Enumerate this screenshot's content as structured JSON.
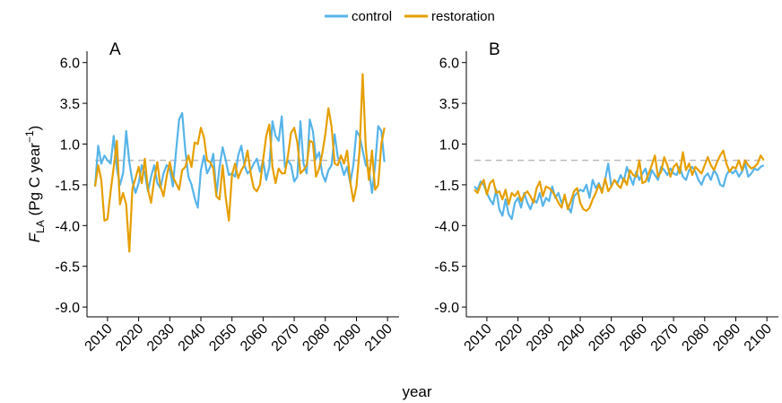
{
  "chart_data": [
    {
      "type": "line",
      "panel_label": "A",
      "xlabel": "year",
      "ylabel_parts": [
        "F",
        "LA",
        " (Pg C year",
        "−1",
        ")"
      ],
      "xlim": [
        2003.4,
        2103.7
      ],
      "ylim": [
        -9.6,
        6.7
      ],
      "xticks": [
        2010,
        2020,
        2030,
        2040,
        2050,
        2060,
        2070,
        2080,
        2090,
        2100
      ],
      "yticks": [
        {
          "value": 6,
          "label": "6.0"
        },
        3.5,
        {
          "value": 1,
          "label": "1.0"
        },
        -1.5,
        {
          "value": -4,
          "label": "-4.0"
        },
        -6.5,
        {
          "value": -9,
          "label": "-9.0"
        }
      ],
      "hline": 0,
      "hline_color": "#bbbbbb",
      "x": [
        2006,
        2007,
        2008,
        2009,
        2010,
        2011,
        2012,
        2013,
        2014,
        2015,
        2016,
        2017,
        2018,
        2019,
        2020,
        2021,
        2022,
        2023,
        2024,
        2025,
        2026,
        2027,
        2028,
        2029,
        2030,
        2031,
        2032,
        2033,
        2034,
        2035,
        2036,
        2037,
        2038,
        2039,
        2040,
        2041,
        2042,
        2043,
        2044,
        2045,
        2046,
        2047,
        2048,
        2049,
        2050,
        2051,
        2052,
        2053,
        2054,
        2055,
        2056,
        2057,
        2058,
        2059,
        2060,
        2061,
        2062,
        2063,
        2064,
        2065,
        2066,
        2067,
        2068,
        2069,
        2070,
        2071,
        2072,
        2073,
        2074,
        2075,
        2076,
        2077,
        2078,
        2079,
        2080,
        2081,
        2082,
        2083,
        2084,
        2085,
        2086,
        2087,
        2088,
        2089,
        2090,
        2091,
        2092,
        2093,
        2094,
        2095,
        2096,
        2097,
        2098,
        2099
      ],
      "series": [
        {
          "name": "control",
          "color": "#56b4e9",
          "values": [
            -1.6,
            0.9,
            -0.2,
            0.3,
            0.0,
            -0.2,
            1.5,
            -0.5,
            -1.5,
            -0.8,
            1.8,
            -0.1,
            -1.3,
            -2.0,
            -1.4,
            -0.3,
            -0.8,
            -1.9,
            -1.0,
            -0.3,
            -1.4,
            -1.7,
            -0.8,
            -0.3,
            -0.5,
            -1.6,
            0.5,
            2.5,
            2.9,
            0.6,
            -1.0,
            -1.5,
            -2.3,
            -2.9,
            -0.6,
            0.3,
            -0.8,
            -0.4,
            0.4,
            -2.1,
            -0.4,
            0.8,
            0.0,
            -0.9,
            -0.8,
            -1.0,
            0.3,
            0.9,
            -0.3,
            -0.8,
            -0.6,
            -0.2,
            0.1,
            -0.7,
            0.0,
            -1.2,
            -0.4,
            2.4,
            1.5,
            1.2,
            2.7,
            -0.4,
            0.0,
            -0.3,
            -1.3,
            -1.0,
            2.4,
            -0.2,
            -0.8,
            2.5,
            1.8,
            0.1,
            0.5,
            -0.8,
            -1.3,
            -0.6,
            -0.3,
            1.6,
            0.2,
            -0.2,
            -0.9,
            -0.4,
            -1.4,
            -0.3,
            1.8,
            1.5,
            0.6,
            -0.3,
            -0.5,
            -2.0,
            -0.3,
            2.1,
            1.8,
            -0.1
          ]
        },
        {
          "name": "restoration",
          "color": "#e69f00",
          "values": [
            -1.6,
            -0.3,
            -1.2,
            -3.7,
            -3.6,
            -1.9,
            -0.4,
            1.2,
            -2.7,
            -2.0,
            -2.7,
            -5.6,
            -1.7,
            -1.1,
            -0.4,
            -1.4,
            0.1,
            -1.8,
            -2.6,
            -1.2,
            -0.1,
            -1.6,
            -2.2,
            -1.0,
            -0.1,
            -1.0,
            -1.4,
            -1.8,
            -0.6,
            -0.4,
            0.3,
            -0.4,
            1.1,
            1.0,
            2.0,
            1.4,
            0.0,
            -0.1,
            -0.5,
            -2.2,
            -2.4,
            -0.3,
            -2.3,
            -3.7,
            -0.9,
            -0.2,
            -1.1,
            -0.6,
            -0.3,
            0.6,
            -0.8,
            -1.7,
            -1.9,
            -1.5,
            0.0,
            1.5,
            2.2,
            -0.4,
            -1.4,
            -0.5,
            -0.8,
            -0.8,
            0.3,
            1.7,
            2.0,
            1.1,
            -0.8,
            -0.6,
            -0.3,
            1.2,
            1.1,
            -1.0,
            -0.5,
            0.4,
            1.6,
            3.2,
            2.1,
            -0.2,
            -0.3,
            0.3,
            -0.2,
            0.6,
            -1.3,
            -2.5,
            -1.6,
            0.6,
            5.3,
            0.8,
            -1.2,
            0.6,
            -1.8,
            -1.5,
            1.0,
            2.0
          ]
        }
      ]
    },
    {
      "type": "line",
      "panel_label": "B",
      "xlim": [
        2003.4,
        2103.7
      ],
      "ylim": [
        -9.6,
        6.7
      ],
      "xticks": [
        2010,
        2020,
        2030,
        2040,
        2050,
        2060,
        2070,
        2080,
        2090,
        2100
      ],
      "yticks": [
        {
          "value": 6,
          "label": "6.0"
        },
        3.5,
        {
          "value": 1,
          "label": "1.0"
        },
        -1.5,
        {
          "value": -4,
          "label": "-4.0"
        },
        -6.5,
        {
          "value": -9,
          "label": "-9.0"
        }
      ],
      "hline": 0,
      "hline_color": "#bbbbbb",
      "x": [
        2006,
        2007,
        2008,
        2009,
        2010,
        2011,
        2012,
        2013,
        2014,
        2015,
        2016,
        2017,
        2018,
        2019,
        2020,
        2021,
        2022,
        2023,
        2024,
        2025,
        2026,
        2027,
        2028,
        2029,
        2030,
        2031,
        2032,
        2033,
        2034,
        2035,
        2036,
        2037,
        2038,
        2039,
        2040,
        2041,
        2042,
        2043,
        2044,
        2045,
        2046,
        2047,
        2048,
        2049,
        2050,
        2051,
        2052,
        2053,
        2054,
        2055,
        2056,
        2057,
        2058,
        2059,
        2060,
        2061,
        2062,
        2063,
        2064,
        2065,
        2066,
        2067,
        2068,
        2069,
        2070,
        2071,
        2072,
        2073,
        2074,
        2075,
        2076,
        2077,
        2078,
        2079,
        2080,
        2081,
        2082,
        2083,
        2084,
        2085,
        2086,
        2087,
        2088,
        2089,
        2090,
        2091,
        2092,
        2093,
        2094,
        2095,
        2096,
        2097,
        2098,
        2099
      ],
      "series": [
        {
          "color": "#56b4e9",
          "values": [
            -1.6,
            -1.8,
            -1.3,
            -1.5,
            -2.0,
            -2.4,
            -2.7,
            -1.8,
            -3.0,
            -3.4,
            -2.4,
            -3.3,
            -3.6,
            -2.6,
            -2.3,
            -2.9,
            -2.0,
            -2.6,
            -3.0,
            -2.4,
            -2.6,
            -2.0,
            -2.8,
            -2.3,
            -2.5,
            -1.6,
            -2.3,
            -2.0,
            -2.6,
            -2.3,
            -2.8,
            -3.2,
            -2.2,
            -2.0,
            -1.8,
            -1.9,
            -1.5,
            -2.3,
            -1.2,
            -1.7,
            -1.4,
            -1.9,
            -1.2,
            -0.2,
            -1.6,
            -1.2,
            -1.4,
            -0.9,
            -1.3,
            -0.4,
            -1.0,
            -1.5,
            -0.7,
            -1.2,
            -0.8,
            -0.5,
            -1.3,
            -0.6,
            -0.9,
            -1.2,
            -0.4,
            -0.6,
            -0.9,
            -0.5,
            -0.8,
            -0.9,
            -0.4,
            -1.0,
            -1.2,
            -0.6,
            -0.4,
            -0.7,
            -1.2,
            -1.5,
            -1.0,
            -0.8,
            -1.2,
            -0.6,
            -0.9,
            -1.5,
            -1.6,
            -0.9,
            -0.6,
            -0.8,
            -0.6,
            -1.0,
            -0.7,
            -0.2,
            -1.0,
            -0.8,
            -0.5,
            -0.6,
            -0.4,
            -0.3
          ]
        },
        {
          "color": "#e69f00",
          "values": [
            -1.8,
            -2.0,
            -1.5,
            -1.2,
            -2.1,
            -1.4,
            -1.2,
            -2.0,
            -1.9,
            -2.4,
            -1.8,
            -2.7,
            -2.0,
            -2.2,
            -1.9,
            -2.5,
            -2.1,
            -1.9,
            -2.2,
            -2.6,
            -1.7,
            -1.3,
            -2.2,
            -1.6,
            -1.7,
            -1.9,
            -2.2,
            -2.6,
            -2.9,
            -2.1,
            -3.0,
            -2.5,
            -1.9,
            -1.7,
            -2.6,
            -3.0,
            -3.1,
            -2.9,
            -2.4,
            -2.0,
            -1.5,
            -2.0,
            -1.1,
            -1.9,
            -1.6,
            -1.2,
            -1.5,
            -1.7,
            -1.1,
            -1.5,
            -0.6,
            -0.9,
            -1.0,
            0.0,
            -1.4,
            -1.3,
            -0.8,
            -0.3,
            0.3,
            -1.0,
            -0.7,
            0.2,
            -0.3,
            -1.0,
            -0.4,
            -0.2,
            -0.8,
            0.5,
            -0.6,
            -0.2,
            -0.9,
            -0.4,
            -0.6,
            -0.8,
            -0.3,
            0.2,
            -0.3,
            -0.6,
            -0.1,
            0.3,
            0.6,
            -0.2,
            -0.7,
            -0.4,
            -0.5,
            0.0,
            -0.6,
            0.0,
            -0.3,
            -0.5,
            -0.4,
            -0.2,
            0.3,
            0.0
          ]
        }
      ]
    }
  ]
}
